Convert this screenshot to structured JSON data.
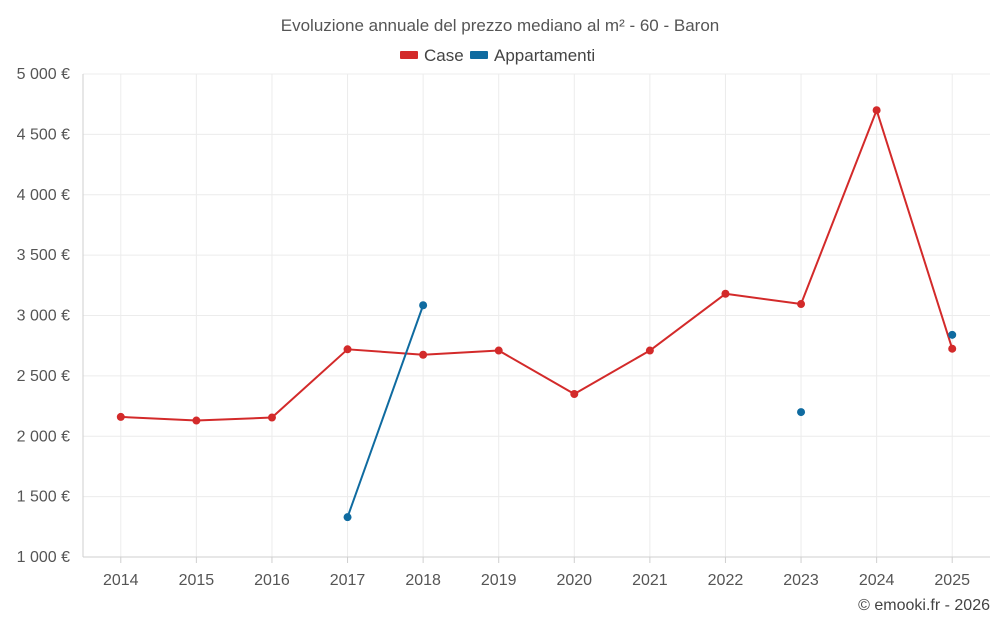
{
  "chart_data": {
    "type": "line",
    "title": "Evoluzione annuale del prezzo mediano al m² - 60 - Baron",
    "categories": [
      "2014",
      "2015",
      "2016",
      "2017",
      "2018",
      "2019",
      "2020",
      "2021",
      "2022",
      "2023",
      "2024",
      "2025"
    ],
    "y_ticks": [
      "1 000 €",
      "1 500 €",
      "2 000 €",
      "2 500 €",
      "3 000 €",
      "3 500 €",
      "4 000 €",
      "4 500 €",
      "5 000 €"
    ],
    "y_tick_values": [
      1000,
      1500,
      2000,
      2500,
      3000,
      3500,
      4000,
      4500,
      5000
    ],
    "ylim": [
      1000,
      5000
    ],
    "grid": true,
    "legend_position": "top-center",
    "series": [
      {
        "name": "Case",
        "color": "#d32a2a",
        "values": [
          2160,
          2130,
          2155,
          2720,
          2675,
          2710,
          2350,
          2710,
          3180,
          3095,
          4700,
          2725
        ]
      },
      {
        "name": "Appartamenti",
        "color": "#0f6ba0",
        "values": [
          null,
          null,
          null,
          1330,
          3085,
          null,
          null,
          null,
          null,
          2200,
          null,
          2840
        ]
      }
    ]
  },
  "credit": "© emooki.fr - 2026"
}
